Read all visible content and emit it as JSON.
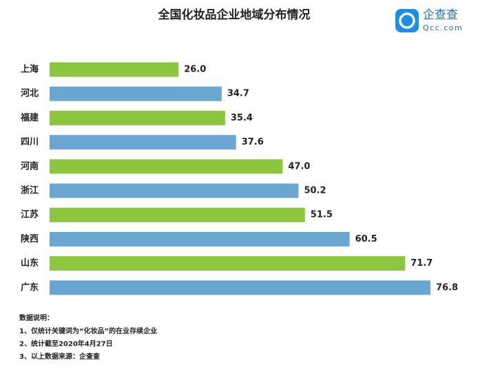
{
  "chart_data": {
    "type": "barh",
    "title": "全国化妆品企业地域分布情况",
    "categories": [
      "上海",
      "河北",
      "福建",
      "四川",
      "河南",
      "浙江",
      "江苏",
      "陕西",
      "山东",
      "广东"
    ],
    "values": [
      26.0,
      34.7,
      35.4,
      37.6,
      47.0,
      50.2,
      51.5,
      60.5,
      71.7,
      76.8
    ],
    "value_labels": [
      "26.0",
      "34.7",
      "35.4",
      "37.6",
      "47.0",
      "50.2",
      "51.5",
      "60.5",
      "71.7",
      "76.8"
    ],
    "colors": [
      "#8cc63e",
      "#6aa6d2",
      "#8cc63e",
      "#6aa6d2",
      "#8cc63e",
      "#6aa6d2",
      "#8cc63e",
      "#6aa6d2",
      "#8cc63e",
      "#6aa6d2"
    ]
  },
  "logo": {
    "name": "企查查",
    "site": "Qcc.com"
  },
  "notes": {
    "heading": "数据说明：",
    "lines": [
      "1、仅统计关键词为“化妆品”的在业存续企业",
      "2、统计截至2020年4月27日",
      "3、以上数据来源：企查查"
    ]
  }
}
